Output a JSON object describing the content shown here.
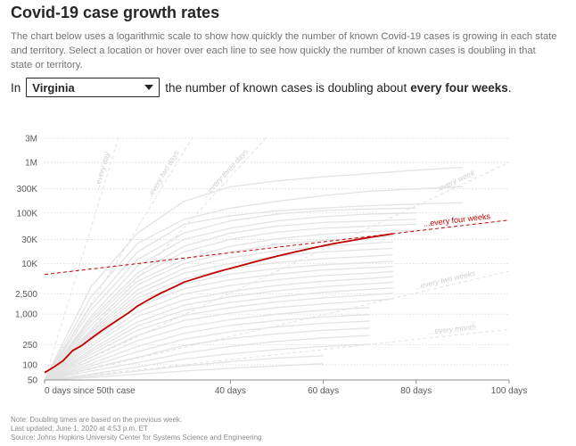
{
  "header": {
    "title": "Covid-19 case growth rates",
    "description": "The chart below uses a logarithmic scale to show how quickly the number of known Covid-19 cases is growing in each state and territory. Select a location or hover over each line to see how quickly the number of known cases is doubling in that state or territory."
  },
  "selector": {
    "prefix": "In",
    "selected": "Virginia",
    "middle": "the number of known cases is doubling about",
    "emphasis": "every four weeks",
    "suffix": "."
  },
  "chart_data": {
    "type": "line",
    "scale": "log",
    "title": "Covid-19 case growth rates",
    "xlabel": "days since 50th case",
    "xlim": [
      0,
      100
    ],
    "ylim": [
      50,
      3000000
    ],
    "x_ticks": [
      {
        "value": 0,
        "label": "0 days since 50th case"
      },
      {
        "value": 40,
        "label": "40 days"
      },
      {
        "value": 60,
        "label": "60 days"
      },
      {
        "value": 80,
        "label": "80 days"
      },
      {
        "value": 100,
        "label": "100 days"
      }
    ],
    "y_ticks": [
      {
        "value": 50,
        "label": "50"
      },
      {
        "value": 100,
        "label": "100"
      },
      {
        "value": 250,
        "label": "250"
      },
      {
        "value": 1000,
        "label": "1,000"
      },
      {
        "value": 2500,
        "label": "2,500"
      },
      {
        "value": 10000,
        "label": "10K"
      },
      {
        "value": 30000,
        "label": "30K"
      },
      {
        "value": 100000,
        "label": "100K"
      },
      {
        "value": 300000,
        "label": "300K"
      },
      {
        "value": 1000000,
        "label": "1M"
      },
      {
        "value": 3000000,
        "label": "3M"
      }
    ],
    "doubling_guides": [
      {
        "label": "...every day",
        "days": 1
      },
      {
        "label": "...every two days",
        "days": 2
      },
      {
        "label": "...every three days",
        "days": 3
      },
      {
        "label": "...every week",
        "days": 7
      },
      {
        "label": "...every two weeks",
        "days": 14
      },
      {
        "label": "...every month",
        "days": 30
      }
    ],
    "highlight_series": {
      "name": "Virginia",
      "trend_label": "...every four weeks",
      "trend_doubling_days": 28,
      "color": "#c00000",
      "x": [
        0,
        2,
        4,
        6,
        8,
        10,
        12,
        14,
        16,
        18,
        20,
        22,
        25,
        28,
        30,
        34,
        38,
        42,
        46,
        50,
        54,
        58,
        62,
        66,
        70,
        75
      ],
      "y": [
        70,
        90,
        120,
        190,
        240,
        330,
        450,
        600,
        800,
        1050,
        1450,
        1850,
        2600,
        3500,
        4300,
        5600,
        7200,
        9000,
        11300,
        14000,
        17000,
        20500,
        24500,
        28500,
        33000,
        39000
      ]
    },
    "background_series": [
      {
        "x": [
          0,
          10,
          20,
          30,
          40,
          50,
          60,
          70,
          80,
          90
        ],
        "y": [
          50,
          3500,
          40000,
          170000,
          330000,
          430000,
          520000,
          600000,
          700000,
          800000
        ]
      },
      {
        "x": [
          0,
          10,
          20,
          30,
          40,
          50,
          60,
          70,
          80,
          90
        ],
        "y": [
          50,
          2200,
          25000,
          75000,
          125000,
          170000,
          220000,
          270000,
          300000,
          330000
        ]
      },
      {
        "x": [
          0,
          10,
          20,
          30,
          40,
          50,
          60,
          70,
          80,
          90
        ],
        "y": [
          50,
          1500,
          17000,
          60000,
          88000,
          110000,
          125000,
          140000,
          150000,
          160000
        ]
      },
      {
        "x": [
          0,
          10,
          20,
          30,
          40,
          50,
          60,
          70,
          80
        ],
        "y": [
          50,
          1200,
          12000,
          40000,
          70000,
          95000,
          112000,
          120000,
          125000
        ]
      },
      {
        "x": [
          0,
          10,
          20,
          30,
          40,
          50,
          60,
          70,
          80
        ],
        "y": [
          50,
          900,
          9000,
          30000,
          50000,
          70000,
          85000,
          95000,
          100000
        ]
      },
      {
        "x": [
          0,
          10,
          20,
          30,
          40,
          50,
          60,
          70,
          80
        ],
        "y": [
          50,
          800,
          6500,
          22000,
          40000,
          55000,
          65000,
          70000,
          75000
        ]
      },
      {
        "x": [
          0,
          10,
          20,
          30,
          40,
          50,
          60,
          70,
          80
        ],
        "y": [
          50,
          700,
          5500,
          17000,
          30000,
          42000,
          50000,
          55000,
          60000
        ]
      },
      {
        "x": [
          0,
          10,
          20,
          30,
          40,
          50,
          60,
          70,
          80
        ],
        "y": [
          50,
          600,
          4500,
          12000,
          22000,
          31000,
          38000,
          43000,
          45000
        ]
      },
      {
        "x": [
          0,
          10,
          20,
          30,
          40,
          50,
          60,
          70,
          75
        ],
        "y": [
          50,
          500,
          3800,
          10000,
          17000,
          24000,
          29000,
          33000,
          35000
        ]
      },
      {
        "x": [
          0,
          10,
          20,
          30,
          40,
          50,
          60,
          70,
          75
        ],
        "y": [
          50,
          450,
          3000,
          8000,
          13000,
          18000,
          22000,
          25000,
          27000
        ]
      },
      {
        "x": [
          0,
          10,
          20,
          30,
          40,
          50,
          60,
          70,
          75
        ],
        "y": [
          50,
          420,
          2500,
          6500,
          10000,
          14000,
          17000,
          19000,
          20000
        ]
      },
      {
        "x": [
          0,
          10,
          20,
          30,
          40,
          50,
          60,
          70,
          75
        ],
        "y": [
          50,
          380,
          2100,
          5000,
          8000,
          10500,
          12500,
          14000,
          15000
        ]
      },
      {
        "x": [
          0,
          10,
          20,
          30,
          40,
          50,
          60,
          70,
          75
        ],
        "y": [
          50,
          350,
          1800,
          4000,
          6200,
          8000,
          9500,
          10500,
          11000
        ]
      },
      {
        "x": [
          0,
          10,
          20,
          30,
          40,
          50,
          60,
          70,
          75
        ],
        "y": [
          50,
          300,
          1400,
          3200,
          4800,
          6200,
          7500,
          8300,
          8800
        ]
      },
      {
        "x": [
          0,
          10,
          20,
          30,
          40,
          50,
          60,
          70,
          75
        ],
        "y": [
          50,
          260,
          1100,
          2500,
          3700,
          4800,
          5800,
          6500,
          7000
        ]
      },
      {
        "x": [
          0,
          10,
          20,
          30,
          40,
          50,
          60,
          70,
          75
        ],
        "y": [
          50,
          230,
          900,
          1900,
          2800,
          3700,
          4500,
          5100,
          5500
        ]
      },
      {
        "x": [
          0,
          10,
          20,
          30,
          40,
          50,
          60,
          70,
          75
        ],
        "y": [
          50,
          200,
          700,
          1500,
          2200,
          2900,
          3500,
          4000,
          4300
        ]
      },
      {
        "x": [
          0,
          10,
          20,
          30,
          40,
          50,
          60,
          70,
          75
        ],
        "y": [
          50,
          180,
          580,
          1200,
          1700,
          2200,
          2700,
          3100,
          3300
        ]
      },
      {
        "x": [
          0,
          10,
          20,
          30,
          40,
          50,
          60,
          70,
          75
        ],
        "y": [
          50,
          160,
          480,
          950,
          1350,
          1750,
          2100,
          2400,
          2600
        ]
      },
      {
        "x": [
          0,
          10,
          20,
          30,
          40,
          50,
          60,
          70,
          75
        ],
        "y": [
          50,
          140,
          380,
          750,
          1050,
          1350,
          1600,
          1850,
          2000
        ]
      },
      {
        "x": [
          0,
          10,
          20,
          30,
          40,
          50,
          60,
          70
        ],
        "y": [
          50,
          120,
          300,
          550,
          780,
          1000,
          1200,
          1350
        ]
      },
      {
        "x": [
          0,
          10,
          20,
          30,
          40,
          50,
          60,
          70
        ],
        "y": [
          50,
          105,
          230,
          420,
          600,
          750,
          880,
          980
        ]
      },
      {
        "x": [
          0,
          10,
          20,
          30,
          40,
          50,
          60,
          70
        ],
        "y": [
          50,
          95,
          180,
          320,
          450,
          560,
          660,
          730
        ]
      },
      {
        "x": [
          0,
          10,
          20,
          30,
          40,
          50,
          60,
          70
        ],
        "y": [
          50,
          85,
          140,
          240,
          330,
          410,
          480,
          530
        ]
      },
      {
        "x": [
          0,
          10,
          20,
          30,
          40,
          50,
          60,
          70
        ],
        "y": [
          50,
          75,
          110,
          170,
          230,
          290,
          340,
          380
        ]
      },
      {
        "x": [
          0,
          10,
          20,
          30,
          40,
          50,
          60,
          70
        ],
        "y": [
          50,
          65,
          90,
          130,
          165,
          200,
          230,
          255
        ]
      },
      {
        "x": [
          0,
          10,
          20,
          30,
          40,
          50,
          60
        ],
        "y": [
          50,
          60,
          75,
          95,
          115,
          135,
          150
        ]
      },
      {
        "x": [
          0,
          10,
          20,
          30,
          40,
          50,
          60
        ],
        "y": [
          50,
          56,
          65,
          75,
          85,
          95,
          105
        ]
      }
    ]
  },
  "notes": {
    "line1": "Note: Doubling times are based on the previous week.",
    "line2": "Last updated: June 1, 2020 at 4:53 p.m. ET",
    "line3": "Source: Johns Hopkins University Center for Systems Science and Engineering"
  }
}
